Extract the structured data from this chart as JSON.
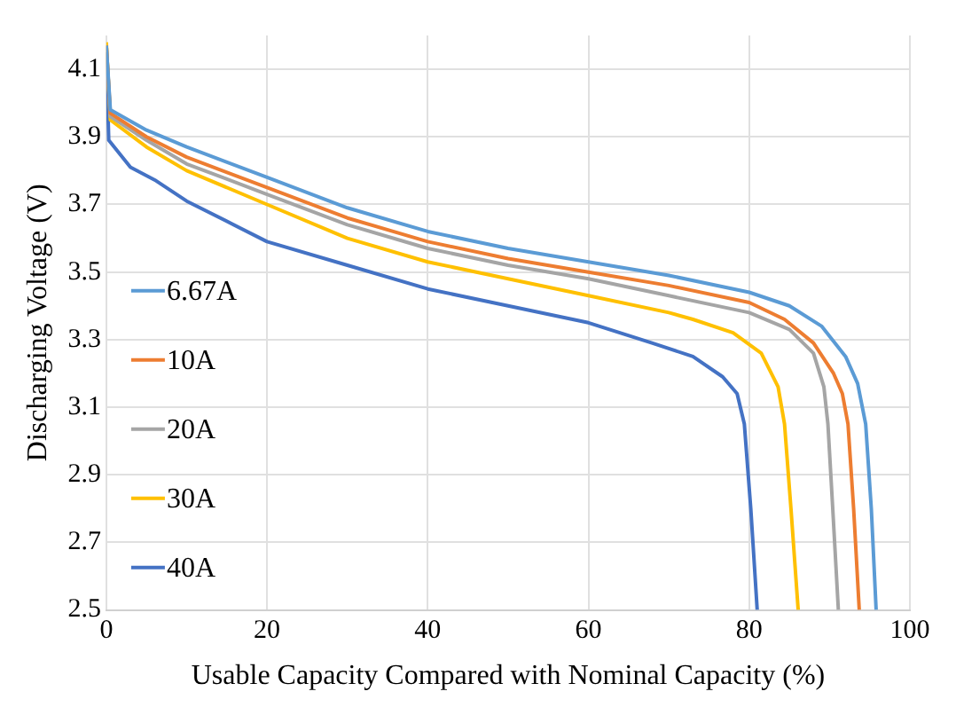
{
  "chart_data": {
    "type": "line",
    "xlabel": "Usable Capacity Compared with Nominal Capacity (%)",
    "ylabel": "Discharging Voltage (V)",
    "xlim": [
      0,
      100
    ],
    "xticks": [
      0,
      20,
      40,
      60,
      80,
      100
    ],
    "ylim": [
      2.5,
      4.2
    ],
    "yticks": [
      2.5,
      2.7,
      2.9,
      3.1,
      3.3,
      3.5,
      3.7,
      3.9,
      4.1
    ],
    "grid": true,
    "legend": "left",
    "marker": "none",
    "line_style": "solid",
    "series": [
      {
        "name": "6.67A",
        "color": "#5b9bd5",
        "x": [
          0,
          0.5,
          5,
          10,
          20,
          30,
          40,
          50,
          60,
          70,
          80,
          85,
          89,
          92,
          93.5,
          94.5,
          95.2,
          95.8
        ],
        "values": [
          4.17,
          3.98,
          3.92,
          3.87,
          3.78,
          3.69,
          3.62,
          3.57,
          3.53,
          3.49,
          3.44,
          3.4,
          3.34,
          3.25,
          3.17,
          3.05,
          2.8,
          2.5
        ]
      },
      {
        "name": "10A",
        "color": "#ed7d31",
        "x": [
          0,
          0.5,
          5,
          10,
          20,
          30,
          40,
          50,
          60,
          70,
          80,
          84.4,
          88,
          90.5,
          91.6,
          92.3,
          93,
          93.7
        ],
        "values": [
          4.17,
          3.97,
          3.9,
          3.84,
          3.75,
          3.66,
          3.59,
          3.54,
          3.5,
          3.46,
          3.41,
          3.36,
          3.29,
          3.2,
          3.14,
          3.05,
          2.8,
          2.5
        ]
      },
      {
        "name": "20A",
        "color": "#a5a5a5",
        "x": [
          0,
          0.5,
          5,
          10,
          20,
          30,
          40,
          50,
          60,
          70,
          80,
          85,
          88,
          89.3,
          89.8,
          90.4,
          91.1
        ],
        "values": [
          4.17,
          3.96,
          3.89,
          3.82,
          3.73,
          3.64,
          3.57,
          3.52,
          3.48,
          3.43,
          3.38,
          3.33,
          3.26,
          3.16,
          3.05,
          2.8,
          2.5
        ]
      },
      {
        "name": "30A",
        "color": "#ffc000",
        "x": [
          0,
          0.5,
          5,
          10,
          20,
          30,
          40,
          50,
          60,
          70,
          73,
          78,
          81.5,
          83.6,
          84.4,
          85.2,
          86.1
        ],
        "values": [
          4.18,
          3.95,
          3.87,
          3.8,
          3.7,
          3.6,
          3.53,
          3.48,
          3.43,
          3.38,
          3.36,
          3.32,
          3.26,
          3.16,
          3.05,
          2.8,
          2.5
        ]
      },
      {
        "name": "40A",
        "color": "#4472c4",
        "x": [
          0,
          0.3,
          3,
          6.2,
          10,
          20,
          30,
          40,
          50,
          60,
          67.9,
          73,
          76.7,
          78.5,
          79.4,
          80.2,
          81
        ],
        "values": [
          4.15,
          3.89,
          3.81,
          3.77,
          3.71,
          3.59,
          3.52,
          3.45,
          3.4,
          3.35,
          3.29,
          3.25,
          3.19,
          3.14,
          3.05,
          2.8,
          2.5
        ]
      }
    ]
  }
}
